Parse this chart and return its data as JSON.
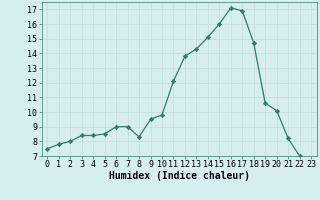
{
  "x": [
    0,
    1,
    2,
    3,
    4,
    5,
    6,
    7,
    8,
    9,
    10,
    11,
    12,
    13,
    14,
    15,
    16,
    17,
    18,
    19,
    20,
    21,
    22,
    23
  ],
  "y": [
    7.5,
    7.8,
    8.0,
    8.4,
    8.4,
    8.5,
    9.0,
    9.0,
    8.3,
    9.5,
    9.8,
    12.1,
    13.8,
    14.3,
    15.1,
    16.0,
    17.1,
    16.9,
    14.7,
    10.6,
    10.1,
    8.2,
    7.0,
    6.8
  ],
  "xlabel": "Humidex (Indice chaleur)",
  "xlim": [
    -0.5,
    23.5
  ],
  "ylim": [
    7,
    17.5
  ],
  "yticks": [
    7,
    8,
    9,
    10,
    11,
    12,
    13,
    14,
    15,
    16,
    17
  ],
  "xticks": [
    0,
    1,
    2,
    3,
    4,
    5,
    6,
    7,
    8,
    9,
    10,
    11,
    12,
    13,
    14,
    15,
    16,
    17,
    18,
    19,
    20,
    21,
    22,
    23
  ],
  "line_color": "#2e7d6e",
  "marker": "D",
  "marker_size": 2.2,
  "bg_color": "#d6eef0",
  "grid_color": "#c8dfe0",
  "label_fontsize": 7,
  "tick_fontsize": 6
}
